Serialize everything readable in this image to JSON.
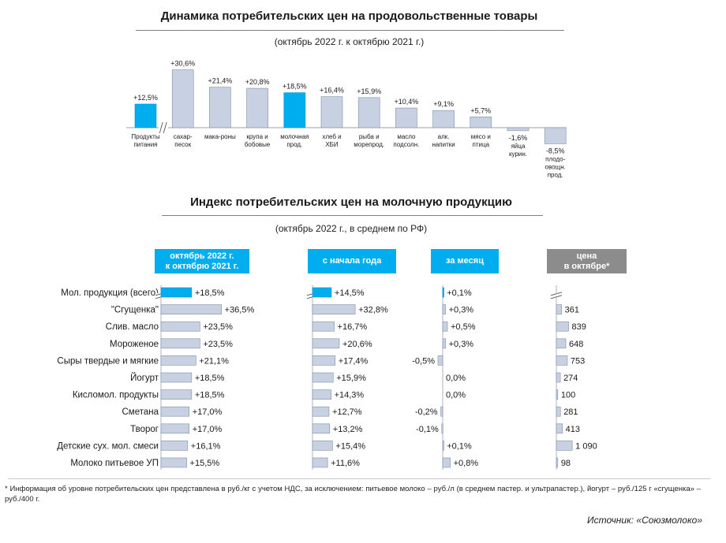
{
  "chart_data": [
    {
      "type": "bar",
      "title": "Динамика потребительских цен на продовольственные товары",
      "subtitle": "(октябрь 2022 г. к октябрю 2021 г.)",
      "categories": [
        [
          "Продукты",
          "питания"
        ],
        [
          "сахар-",
          "песок"
        ],
        [
          "мака-роны"
        ],
        [
          "крупа и",
          "бобовые"
        ],
        [
          "молочная",
          "прод."
        ],
        [
          "хлеб и",
          "ХБИ"
        ],
        [
          "рыба и",
          "морепрод."
        ],
        [
          "масло",
          "подсолн."
        ],
        [
          "алк.",
          "напитки"
        ],
        [
          "мясо и",
          "птица"
        ],
        [
          "яйца",
          "курин."
        ],
        [
          "плодо-",
          "овощн.",
          "прод."
        ]
      ],
      "values": [
        12.5,
        30.6,
        21.4,
        20.8,
        18.5,
        16.4,
        15.9,
        10.4,
        9.1,
        5.7,
        -1.6,
        -8.5
      ],
      "labels": [
        "+12,5%",
        "+30,6%",
        "+21,4%",
        "+20,8%",
        "+18,5%",
        "+16,4%",
        "+15,9%",
        "+10,4%",
        "+9,1%",
        "+5,7%",
        "-1,6%",
        "-8,5%"
      ],
      "highlighted": [
        0,
        4
      ],
      "axis_break_after_first": true
    },
    {
      "type": "bar",
      "orientation": "horizontal",
      "title": "Индекс потребительских цен на молочную продукцию",
      "subtitle": "(октябрь 2022 г., в среднем по РФ)",
      "categories": [
        "Мол. продукция (всего)",
        "\"Сгущенка\"",
        "Слив. масло",
        "Мороженое",
        "Сыры твердые и мягкие",
        "Йогурт",
        "Кисломол. продукты",
        "Сметана",
        "Творог",
        "Детские сух. мол. смеси",
        "Молоко питьевое УП"
      ],
      "series": [
        {
          "name": "октябрь 2022 г. к октябрю 2021 г.",
          "values": [
            18.5,
            36.5,
            23.5,
            23.5,
            21.1,
            18.5,
            18.5,
            17.0,
            17.0,
            16.1,
            15.5
          ],
          "labels": [
            "+18,5%",
            "+36,5%",
            "+23,5%",
            "+23,5%",
            "+21,1%",
            "+18,5%",
            "+18,5%",
            "+17,0%",
            "+17,0%",
            "+16,1%",
            "+15,5%"
          ]
        },
        {
          "name": "с начала года",
          "values": [
            14.5,
            32.8,
            16.7,
            20.6,
            17.4,
            15.9,
            14.3,
            12.7,
            13.2,
            15.4,
            11.6
          ],
          "labels": [
            "+14,5%",
            "+32,8%",
            "+16,7%",
            "+20,6%",
            "+17,4%",
            "+15,9%",
            "+14,3%",
            "+12,7%",
            "+13,2%",
            "+15,4%",
            "+11,6%"
          ]
        },
        {
          "name": "за месяц",
          "values": [
            0.1,
            0.3,
            0.5,
            0.3,
            -0.5,
            0.0,
            0.0,
            -0.2,
            -0.1,
            0.1,
            0.8
          ],
          "labels": [
            "+0,1%",
            "+0,3%",
            "+0,5%",
            "+0,3%",
            "-0,5%",
            "0,0%",
            "0,0%",
            "-0,2%",
            "-0,1%",
            "+0,1%",
            "+0,8%"
          ]
        },
        {
          "name": "цена в октябре*",
          "values": [
            null,
            361,
            839,
            648,
            753,
            274,
            100,
            281,
            413,
            1090,
            98
          ],
          "labels": [
            "",
            "361",
            "839",
            "648",
            "753",
            "274",
            "100",
            "281",
            "413",
            "1 090",
            "98"
          ]
        }
      ],
      "headers": [
        [
          "октябрь 2022 г.",
          "к октябрю 2021 г."
        ],
        [
          "с начала года"
        ],
        [
          "за месяц"
        ],
        [
          "цена",
          "в октябре*"
        ]
      ],
      "header_colors": [
        "#00aeef",
        "#00aeef",
        "#00aeef",
        "#8c8c8c"
      ],
      "highlight_row": 0
    }
  ],
  "colors": {
    "highlight": "#00aeef",
    "bar": "#c8d1e1",
    "bar_border": "#7f8fa6",
    "grey_header": "#8c8c8c"
  },
  "footnote": "* Информация об уровне потребительских цен представлена в руб./кг с учетом НДС, за исключением: питьевое молоко – руб./л (в среднем пастер. и ультрапастер.), йогурт – руб./125 г «сгущенка» – руб./400 г.",
  "source": "Источник: «Союзмолоко»"
}
